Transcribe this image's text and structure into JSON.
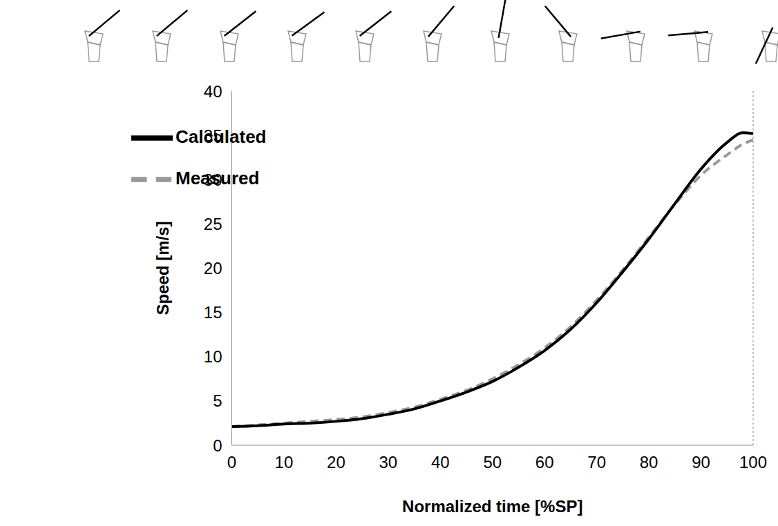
{
  "chart_data": {
    "type": "line",
    "x_label": "Normalized time [%SP]",
    "y_label": "Speed [m/s]",
    "x": [
      0,
      5,
      10,
      15,
      20,
      25,
      30,
      35,
      40,
      45,
      50,
      55,
      60,
      65,
      70,
      75,
      80,
      85,
      90,
      95,
      98,
      100
    ],
    "series": [
      {
        "name": "Measured",
        "color": "#999999",
        "line_style": "dashed",
        "values": [
          2.1,
          2.3,
          2.5,
          2.7,
          2.9,
          3.2,
          3.7,
          4.3,
          5.2,
          6.2,
          7.5,
          9.1,
          11.0,
          13.4,
          16.4,
          19.8,
          23.5,
          27.2,
          30.5,
          32.8,
          34.0,
          34.5
        ]
      },
      {
        "name": "Calculated",
        "color": "#000000",
        "line_style": "solid",
        "values": [
          2.1,
          2.2,
          2.4,
          2.5,
          2.7,
          3.0,
          3.5,
          4.1,
          5.0,
          6.0,
          7.2,
          8.8,
          10.7,
          13.1,
          16.1,
          19.6,
          23.3,
          27.3,
          31.2,
          34.2,
          35.3,
          35.2
        ]
      }
    ],
    "xlim": [
      0,
      100
    ],
    "ylim": [
      0,
      40
    ],
    "xticks": [
      0,
      10,
      20,
      30,
      40,
      50,
      60,
      70,
      80,
      90,
      100
    ],
    "yticks": [
      0,
      5,
      10,
      15,
      20,
      25,
      30,
      35,
      40
    ],
    "grid": false,
    "legend": "upper left"
  }
}
